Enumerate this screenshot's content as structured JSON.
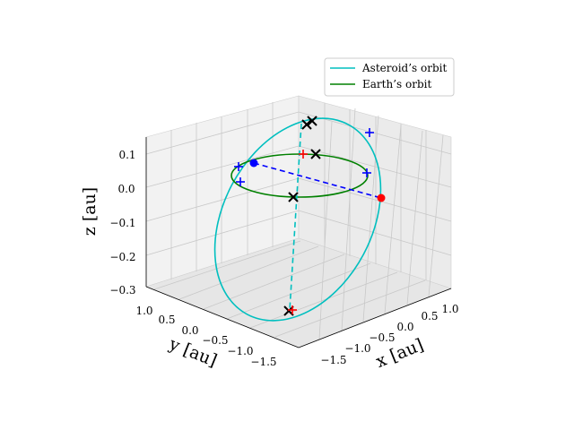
{
  "chart_data": {
    "type": "scatter",
    "subtype": "3d-orbit",
    "title": "",
    "xlabel": "x [au]",
    "ylabel": "y [au]",
    "zlabel": "z [au]",
    "xlim": [
      -1.7,
      1.2
    ],
    "ylim": [
      -1.7,
      1.2
    ],
    "zlim": [
      -0.3,
      0.15
    ],
    "x_ticks": [
      "−1.5",
      "−1.0",
      "−0.5",
      "0.0",
      "0.5",
      "1.0"
    ],
    "y_ticks": [
      "1.0",
      "0.5",
      "0.0",
      "−0.5",
      "−1.0",
      "−1.5"
    ],
    "z_ticks": [
      "0.1",
      "0.0",
      "−0.1",
      "−0.2",
      "−0.3"
    ],
    "grid": true,
    "legend_placement": "top-right",
    "legend": [
      {
        "label": "Asteroid’s orbit",
        "color": "#00bfbf"
      },
      {
        "label": "Earth’s orbit",
        "color": "#008000"
      }
    ],
    "series": [
      {
        "name": "Asteroid’s orbit",
        "kind": "ellipse",
        "color": "#00bfbf",
        "center": [
          -0.25,
          -0.25,
          -0.08
        ],
        "semi_major": 1.35,
        "semi_minor": 1.0
      },
      {
        "name": "Earth’s orbit",
        "kind": "circle",
        "color": "#008000",
        "center": [
          0,
          0,
          0
        ],
        "radius": 1.0
      }
    ],
    "markers": {
      "colors": {
        "x": "#000000",
        "blue_plus": "#0000ff",
        "red_plus": "#ff0000",
        "blue_dot": "#0000ff",
        "red_dot": "#ff0000"
      }
    }
  }
}
